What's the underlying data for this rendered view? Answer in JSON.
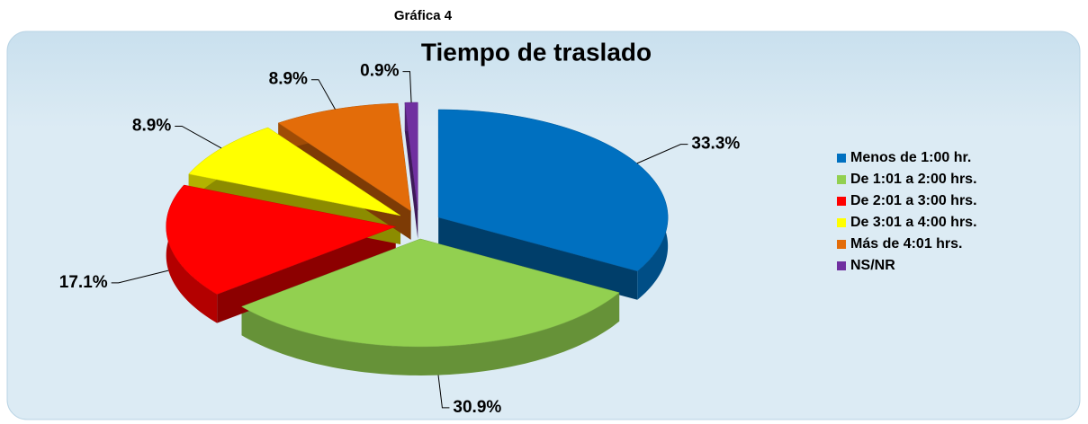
{
  "chart_data": {
    "type": "pie",
    "supertitle": "Gráfica 4",
    "title": "Tiempo de traslado",
    "categories": [
      "Menos de 1:00 hr.",
      "De 1:01 a 2:00 hrs.",
      "De 2:01 a 3:00 hrs.",
      "De 3:01 a 4:00 hrs.",
      "Más de 4:01 hrs.",
      "NS/NR"
    ],
    "values": [
      33.3,
      30.9,
      17.1,
      8.9,
      8.9,
      0.9
    ],
    "value_labels": [
      "33.3%",
      "30.9%",
      "17.1%",
      "8.9%",
      "8.9%",
      "0.9%"
    ],
    "colors": [
      "#0070c0",
      "#92d050",
      "#ff0000",
      "#ffff00",
      "#e36c09",
      "#7030a0"
    ],
    "legend": "right"
  }
}
